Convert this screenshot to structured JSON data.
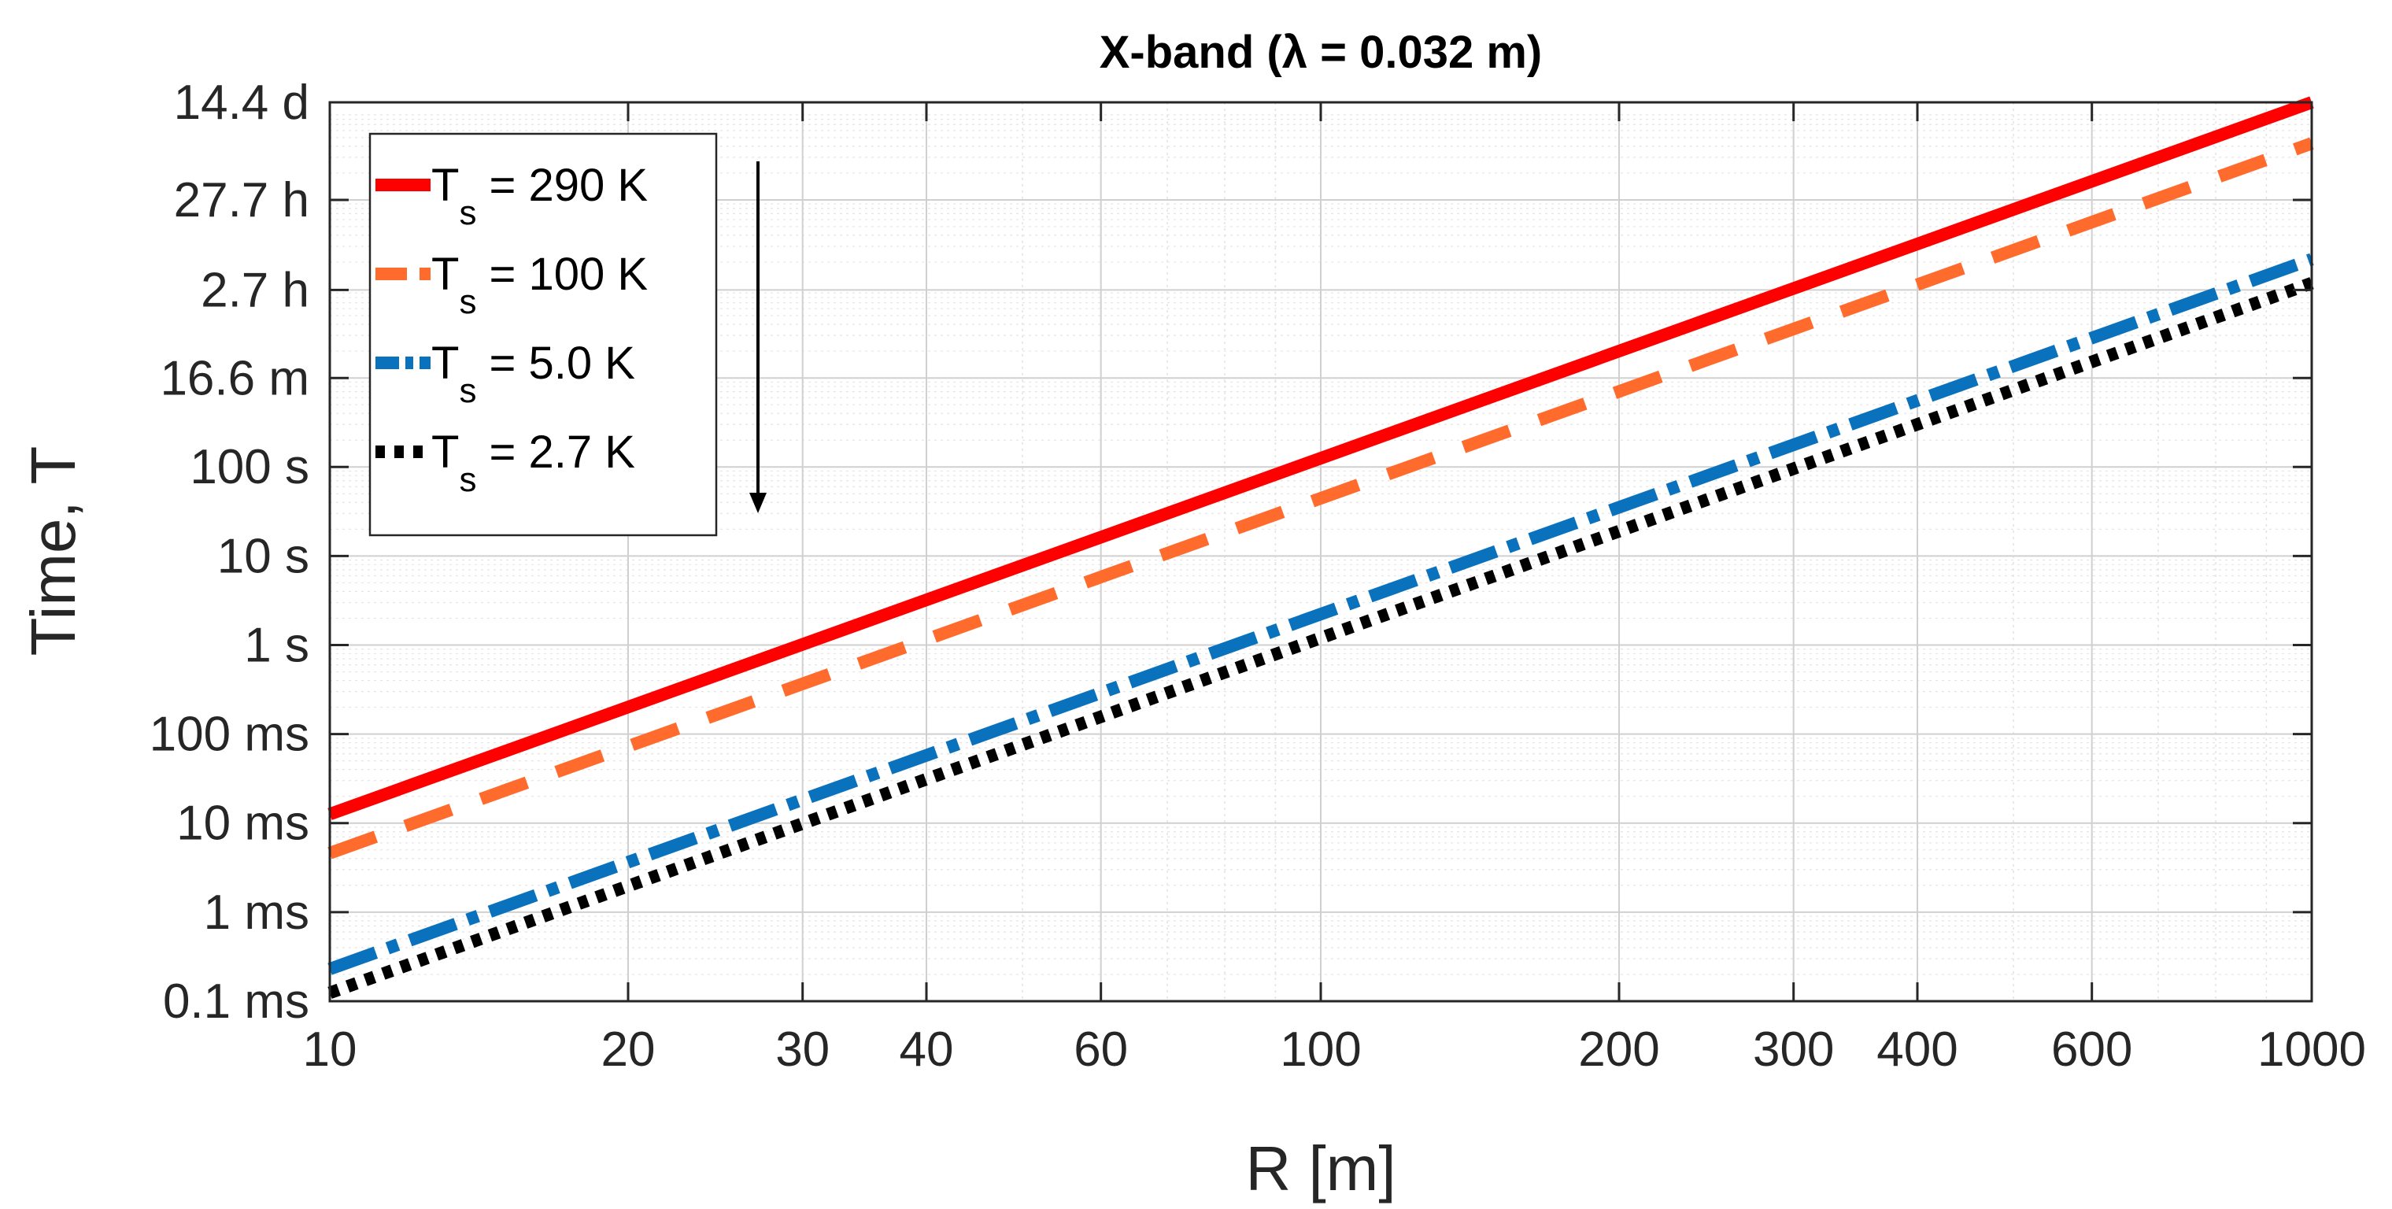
{
  "chart_data": {
    "type": "line",
    "title": "X-band (λ = 0.032 m)",
    "xlabel": "R [m]",
    "ylabel": "Time, T",
    "xscale": "log",
    "yscale": "log",
    "xlim": [
      10,
      1000
    ],
    "ylim_seconds": [
      0.0001,
      1244160
    ],
    "x_ticks": [
      10,
      20,
      30,
      40,
      60,
      100,
      200,
      300,
      400,
      600,
      1000
    ],
    "x_tick_labels": [
      "10",
      "20",
      "30",
      "40",
      "60",
      "100",
      "200",
      "300",
      "400",
      "600",
      "1000"
    ],
    "y_ticks_seconds": [
      0.0001,
      0.001,
      0.01,
      0.1,
      1,
      10,
      100,
      996,
      9720,
      99720,
      1244160
    ],
    "y_tick_labels": [
      "0.1 ms",
      "1 ms",
      "10 ms",
      "100 ms",
      "1 s",
      "10 s",
      "100 s",
      "16.6 m",
      "2.7 h",
      "27.7 h",
      "14.4 d"
    ],
    "grid": true,
    "legend_position": "top-left",
    "arrow_annotation": "downward arrow beside legend indicating decreasing system temperature",
    "series": [
      {
        "name": "Ts = 290 K",
        "label_main": "T",
        "label_sub": "s",
        "label_rest": " = 290 K",
        "color": "#ff0000",
        "dash": "solid",
        "x": [
          10,
          1000
        ],
        "y_seconds": [
          0.0126,
          1244160
        ]
      },
      {
        "name": "Ts = 100 K",
        "label_main": "T",
        "label_sub": "s",
        "label_rest": " = 100 K",
        "color": "#ff6b2d",
        "dash": "dashed",
        "x": [
          10,
          1000
        ],
        "y_seconds": [
          0.0046,
          430000
        ]
      },
      {
        "name": "Ts = 5.0 K",
        "label_main": "T",
        "label_sub": "s",
        "label_rest": " = 5.0 K",
        "color": "#0a72bd",
        "dash": "dashdot",
        "x": [
          10,
          1000
        ],
        "y_seconds": [
          0.00023,
          21500
        ]
      },
      {
        "name": "Ts = 2.7 K",
        "label_main": "T",
        "label_sub": "s",
        "label_rest": " = 2.7 K",
        "color": "#000000",
        "dash": "dotted",
        "x": [
          10,
          1000
        ],
        "y_seconds": [
          0.000124,
          11600
        ]
      }
    ]
  }
}
